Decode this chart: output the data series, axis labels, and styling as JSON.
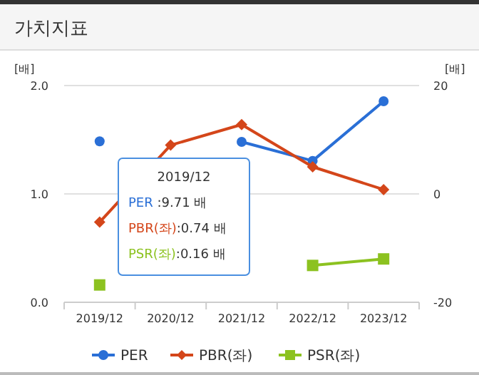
{
  "chart_data": {
    "type": "line",
    "title": "가치지표",
    "ylabel": "[배]",
    "y2label": "[배]",
    "categories": [
      "2019/12",
      "2020/12",
      "2021/12",
      "2022/12",
      "2023/12"
    ],
    "series": [
      {
        "name": "PER",
        "color": "#2a6fd6",
        "values": [
          9.71,
          null,
          9.6,
          6.1,
          17.1
        ],
        "axis": "y2",
        "marker": "circle"
      },
      {
        "name": "PBR(좌)",
        "color": "#d4461a",
        "values": [
          0.74,
          1.45,
          1.64,
          1.25,
          1.04
        ],
        "marker": "diamond"
      },
      {
        "name": "PSR(좌)",
        "color": "#8cc220",
        "values": [
          0.16,
          null,
          null,
          0.34,
          0.4
        ],
        "marker": "square"
      }
    ],
    "ylim": [
      0,
      2
    ],
    "yticks": [
      {
        "value": 0,
        "label": "0.0"
      },
      {
        "value": 1,
        "label": "1.0"
      },
      {
        "value": 2,
        "label": "2.0"
      }
    ],
    "y2lim": [
      -20,
      20
    ],
    "y2ticks": [
      -20,
      0,
      20
    ],
    "grid": "y",
    "legend": "bottom",
    "annotations": [
      "2019/12",
      "PER :9.71 배",
      "PBR(좌):0.74 배",
      "PSR(좌):0.16 배"
    ]
  }
}
